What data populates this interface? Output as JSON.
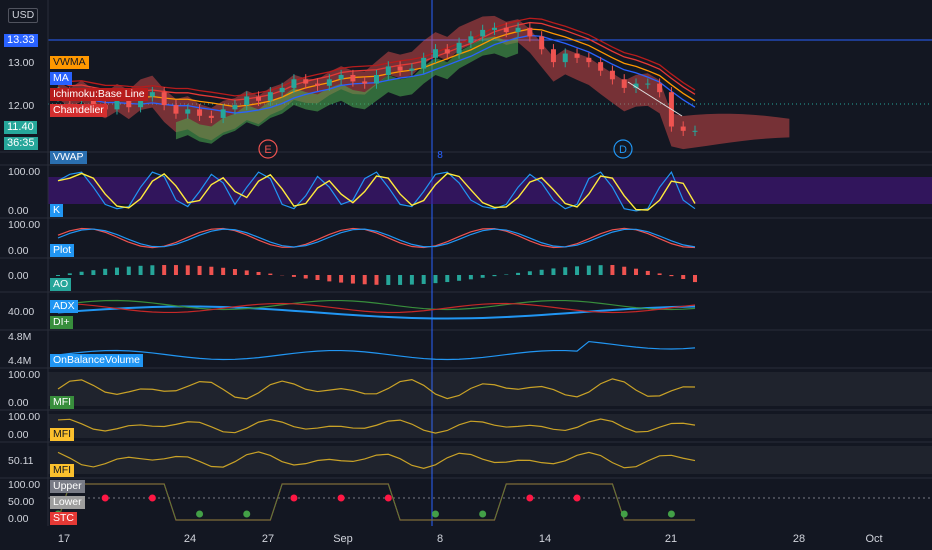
{
  "currency": "USD",
  "price_axis": {
    "current_price": "13.33",
    "ticks": [
      "13.00",
      "12.00"
    ],
    "last_close": "11.40",
    "countdown": "36:35"
  },
  "main_panel": {
    "legend": [
      {
        "label": "VWMA",
        "bg": "#ff9800",
        "fg": "#131722"
      },
      {
        "label": "MA",
        "bg": "#2962ff",
        "fg": "#ffffff"
      },
      {
        "label": "Ichimoku:Base Line",
        "bg": "#b71c1c",
        "fg": "#ffffff"
      },
      {
        "label": "Chandelier",
        "bg": "#d32f2f",
        "fg": "#ffffff"
      }
    ],
    "events": [
      {
        "label": "E",
        "color": "#ef5350"
      },
      {
        "label": "D",
        "color": "#2196f3"
      }
    ],
    "crosshair_label": "8"
  },
  "panels": [
    {
      "id": "vwap",
      "ticks": [],
      "legend": [
        {
          "label": "VWAP",
          "bg": "#2a6fb0",
          "fg": "#ffffff"
        }
      ]
    },
    {
      "id": "stoch",
      "ticks": [
        "100.00",
        "0.00"
      ],
      "legend": [
        {
          "label": "K",
          "bg": "#2196f3",
          "fg": "#ffffff"
        }
      ]
    },
    {
      "id": "plot",
      "ticks": [
        "100.00",
        "0.00"
      ],
      "legend": [
        {
          "label": "Plot",
          "bg": "#2196f3",
          "fg": "#ffffff"
        }
      ]
    },
    {
      "id": "ao",
      "ticks": [
        "0.00"
      ],
      "legend": [
        {
          "label": "AO",
          "bg": "#26a69a",
          "fg": "#ffffff"
        }
      ]
    },
    {
      "id": "adx",
      "ticks": [
        "40.00"
      ],
      "legend": [
        {
          "label": "ADX",
          "bg": "#2196f3",
          "fg": "#ffffff"
        },
        {
          "label": "DI+",
          "bg": "#388e3c",
          "fg": "#ffffff"
        }
      ]
    },
    {
      "id": "obv",
      "ticks": [
        "4.8M",
        "4.4M"
      ],
      "legend": [
        {
          "label": "OnBalanceVolume",
          "bg": "#2196f3",
          "fg": "#ffffff"
        }
      ]
    },
    {
      "id": "mfi1",
      "ticks": [
        "100.00",
        "0.00"
      ],
      "legend": [
        {
          "label": "MFI",
          "bg": "#388e3c",
          "fg": "#ffffff"
        }
      ]
    },
    {
      "id": "mfi2",
      "ticks": [
        "100.00",
        "0.00"
      ],
      "legend": [
        {
          "label": "MFI",
          "bg": "#fbc02d",
          "fg": "#131722"
        }
      ]
    },
    {
      "id": "mfi3",
      "ticks": [
        "50.11"
      ],
      "legend": [
        {
          "label": "MFI",
          "bg": "#fbc02d",
          "fg": "#131722"
        }
      ]
    },
    {
      "id": "stc",
      "ticks": [
        "100.00",
        "50.00",
        "0.00"
      ],
      "legend": [
        {
          "label": "Upper",
          "bg": "#787b86",
          "fg": "#ffffff"
        },
        {
          "label": "Lower",
          "bg": "#9e9e9e",
          "fg": "#ffffff"
        },
        {
          "label": "STC",
          "bg": "#e53935",
          "fg": "#ffffff"
        }
      ]
    }
  ],
  "time_axis": [
    "17",
    "24",
    "27",
    "Sep",
    "8",
    "14",
    "21",
    "28",
    "Oct"
  ],
  "colors": {
    "background": "#131722",
    "up": "#26a69a",
    "down": "#ef5350",
    "crosshair": "#2962ff",
    "stoch_k": "#2196f3",
    "stoch_d": "#ffeb3b",
    "stoch_band": "#4a148c",
    "adx": "#2196f3",
    "mfi": "#c9a227"
  },
  "chart_data": [
    {
      "type": "candlestick",
      "title": "",
      "ylim": [
        11.0,
        14.4
      ],
      "series": [
        {
          "name": "close",
          "values": [
            12.3,
            12.1,
            12.25,
            12.0,
            11.9,
            12.1,
            11.95,
            12.2,
            12.3,
            12.0,
            11.8,
            11.9,
            11.75,
            11.7,
            11.9,
            12.0,
            12.2,
            12.1,
            12.3,
            12.4,
            12.6,
            12.5,
            12.45,
            12.6,
            12.7,
            12.55,
            12.5,
            12.7,
            12.9,
            12.8,
            12.85,
            13.1,
            13.3,
            13.2,
            13.45,
            13.6,
            13.75,
            13.8,
            13.7,
            13.8,
            13.6,
            13.3,
            13.0,
            13.2,
            13.1,
            13.0,
            12.8,
            12.6,
            12.4,
            12.5,
            12.5,
            12.3,
            11.5,
            11.4,
            11.4
          ]
        }
      ]
    },
    {
      "type": "line",
      "title": "",
      "ylim": [
        0,
        100
      ],
      "series": [
        {
          "name": "K",
          "values": [
            75,
            90,
            95,
            60,
            20,
            10,
            15,
            60,
            95,
            85,
            30,
            15,
            50,
            90,
            70,
            20,
            60,
            95,
            80,
            20,
            10,
            40,
            85,
            60,
            20,
            30,
            80,
            95,
            60,
            20,
            15,
            50,
            90,
            95,
            70,
            30,
            15,
            10,
            20,
            60,
            90,
            70,
            30,
            10,
            20,
            80,
            95,
            60,
            10,
            5,
            10,
            60,
            95,
            30,
            10
          ]
        }
      ]
    }
  ]
}
